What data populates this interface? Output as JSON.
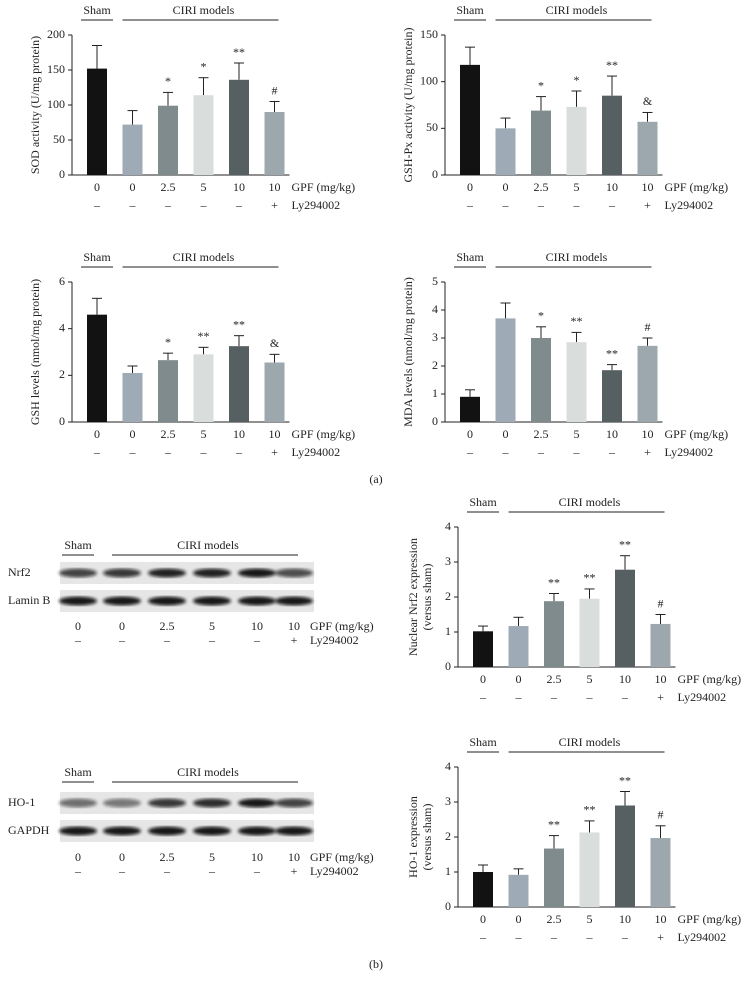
{
  "chart_data": [
    {
      "type": "bar",
      "ylabel": [
        "SOD activity (U/mg protein)"
      ],
      "groups": [
        "Sham",
        "CIRI models"
      ],
      "categories": [
        "0",
        "0",
        "2.5",
        "5",
        "10",
        "10"
      ],
      "category_label": "GPF (mg/kg)",
      "inhibitor": [
        "–",
        "–",
        "–",
        "–",
        "–",
        "+"
      ],
      "inhibitor_label": "Ly294002",
      "values": [
        152,
        72,
        99,
        114,
        136,
        90
      ],
      "errors": [
        33,
        20,
        19,
        25,
        24,
        15
      ],
      "annotations": [
        null,
        null,
        "*",
        "*",
        "**",
        "#"
      ],
      "colors": [
        "#121212",
        "#9eabb6",
        "#7f8b8c",
        "#d9dddb",
        "#565f61",
        "#9ca7ae"
      ],
      "ylim": [
        0,
        200
      ],
      "yticks": [
        0,
        50,
        100,
        150,
        200
      ]
    },
    {
      "type": "bar",
      "ylabel": [
        "GSH-Px activity (U/mg protein)"
      ],
      "groups": [
        "Sham",
        "CIRI models"
      ],
      "categories": [
        "0",
        "0",
        "2.5",
        "5",
        "10",
        "10"
      ],
      "category_label": "GPF (mg/kg)",
      "inhibitor": [
        "–",
        "–",
        "–",
        "–",
        "–",
        "+"
      ],
      "inhibitor_label": "Ly294002",
      "values": [
        118,
        50,
        69,
        73,
        85,
        57
      ],
      "errors": [
        19,
        11,
        15,
        17,
        21,
        10
      ],
      "annotations": [
        null,
        null,
        "*",
        "*",
        "**",
        "&"
      ],
      "colors": [
        "#121212",
        "#9eabb6",
        "#7f8b8c",
        "#d9dddb",
        "#565f61",
        "#9ca7ae"
      ],
      "ylim": [
        0,
        150
      ],
      "yticks": [
        0,
        50,
        100,
        150
      ]
    },
    {
      "type": "bar",
      "ylabel": [
        "GSH levels (nmol/mg protein)"
      ],
      "groups": [
        "Sham",
        "CIRI models"
      ],
      "categories": [
        "0",
        "0",
        "2.5",
        "5",
        "10",
        "10"
      ],
      "category_label": "GPF (mg/kg)",
      "inhibitor": [
        "–",
        "–",
        "–",
        "–",
        "–",
        "+"
      ],
      "inhibitor_label": "Ly294002",
      "values": [
        4.6,
        2.1,
        2.65,
        2.9,
        3.25,
        2.55
      ],
      "errors": [
        0.7,
        0.3,
        0.3,
        0.3,
        0.45,
        0.35
      ],
      "annotations": [
        null,
        null,
        "*",
        "**",
        "**",
        "&"
      ],
      "colors": [
        "#121212",
        "#9eabb6",
        "#7f8b8c",
        "#d9dddb",
        "#565f61",
        "#9ca7ae"
      ],
      "ylim": [
        0,
        6
      ],
      "yticks": [
        0,
        2,
        4,
        6
      ]
    },
    {
      "type": "bar",
      "ylabel": [
        "MDA levels (nmol/mg protein)"
      ],
      "groups": [
        "Sham",
        "CIRI models"
      ],
      "categories": [
        "0",
        "0",
        "2.5",
        "5",
        "10",
        "10"
      ],
      "category_label": "GPF (mg/kg)",
      "inhibitor": [
        "–",
        "–",
        "–",
        "–",
        "–",
        "+"
      ],
      "inhibitor_label": "Ly294002",
      "values": [
        0.9,
        3.7,
        3.0,
        2.85,
        1.85,
        2.72
      ],
      "errors": [
        0.25,
        0.55,
        0.4,
        0.35,
        0.2,
        0.28
      ],
      "annotations": [
        null,
        null,
        "*",
        "**",
        "**",
        "#"
      ],
      "colors": [
        "#121212",
        "#9eabb6",
        "#7f8b8c",
        "#d9dddb",
        "#565f61",
        "#9ca7ae"
      ],
      "ylim": [
        0,
        5
      ],
      "yticks": [
        0,
        1,
        2,
        3,
        4,
        5
      ]
    },
    {
      "type": "bar",
      "ylabel": [
        "Nuclear Nrf2 expression",
        "(versus sham)"
      ],
      "groups": [
        "Sham",
        "CIRI models"
      ],
      "categories": [
        "0",
        "0",
        "2.5",
        "5",
        "10",
        "10"
      ],
      "category_label": "GPF (mg/kg)",
      "inhibitor": [
        "–",
        "–",
        "–",
        "–",
        "–",
        "+"
      ],
      "inhibitor_label": "Ly294002",
      "values": [
        1.02,
        1.17,
        1.88,
        1.95,
        2.78,
        1.23
      ],
      "errors": [
        0.15,
        0.25,
        0.22,
        0.28,
        0.4,
        0.27
      ],
      "annotations": [
        null,
        null,
        "**",
        "**",
        "**",
        "#"
      ],
      "colors": [
        "#121212",
        "#9eabb6",
        "#7f8b8c",
        "#d9dddb",
        "#565f61",
        "#9ca7ae"
      ],
      "ylim": [
        0,
        4
      ],
      "yticks": [
        0,
        1,
        2,
        3,
        4
      ]
    },
    {
      "type": "bar",
      "ylabel": [
        "HO-1 expression",
        "(versus sham)"
      ],
      "groups": [
        "Sham",
        "CIRI models"
      ],
      "categories": [
        "0",
        "0",
        "2.5",
        "5",
        "10",
        "10"
      ],
      "category_label": "GPF (mg/kg)",
      "inhibitor": [
        "–",
        "–",
        "–",
        "–",
        "–",
        "+"
      ],
      "inhibitor_label": "Ly294002",
      "values": [
        1.0,
        0.92,
        1.67,
        2.13,
        2.9,
        1.97
      ],
      "errors": [
        0.2,
        0.17,
        0.37,
        0.33,
        0.4,
        0.35
      ],
      "annotations": [
        null,
        null,
        "**",
        "**",
        "**",
        "#"
      ],
      "colors": [
        "#121212",
        "#9eabb6",
        "#7f8b8c",
        "#d9dddb",
        "#565f61",
        "#9ca7ae"
      ],
      "ylim": [
        0,
        4
      ],
      "yticks": [
        0,
        1,
        2,
        3,
        4
      ]
    }
  ],
  "blots": [
    {
      "groups": [
        "Sham",
        "CIRI models"
      ],
      "rows": [
        "Nrf2",
        "Lamin B"
      ],
      "categories": [
        "0",
        "0",
        "2.5",
        "5",
        "10",
        "10"
      ],
      "category_label": "GPF (mg/kg)",
      "inhibitor": [
        "–",
        "–",
        "–",
        "–",
        "–",
        "+"
      ],
      "inhibitor_label": "Ly294002"
    },
    {
      "groups": [
        "Sham",
        "CIRI models"
      ],
      "rows": [
        "HO-1",
        "GAPDH"
      ],
      "categories": [
        "0",
        "0",
        "2.5",
        "5",
        "10",
        "10"
      ],
      "category_label": "GPF (mg/kg)",
      "inhibitor": [
        "–",
        "–",
        "–",
        "–",
        "–",
        "+"
      ],
      "inhibitor_label": "Ly294002"
    }
  ],
  "panel_labels": [
    "(a)",
    "(b)"
  ]
}
